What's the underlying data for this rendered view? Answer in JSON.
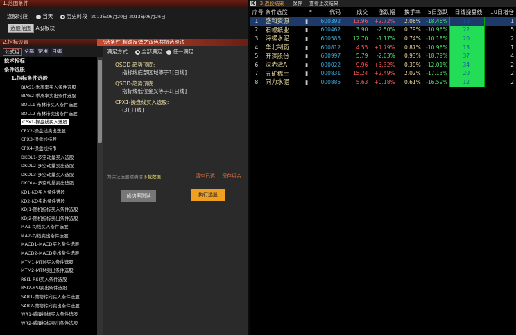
{
  "range": {
    "header": "1.范围条件",
    "period_label": "选股时段",
    "opt_today": "当天",
    "opt_history": "历史时段",
    "date_range": "2013年06月20日-2013年06月26日",
    "range_button": "选股范围",
    "range_value": "A股板块"
  },
  "indicator": {
    "header": "2.指标设置",
    "tabs": [
      "公式组",
      "全部",
      "常用",
      "自编"
    ],
    "tree_root": "技术指标",
    "tree_group": "条件选股",
    "tree_sub": "1.指标条件选股",
    "items": [
      "BIAS1-乖离率买入条件选股",
      "BIAS2-乖离率卖出条件选股",
      "BOLL1-布林带买入条件选股",
      "BOLL2-布林带卖出条件选股",
      "CPX1-操盘线买入选股",
      "CPX2-操盘线卖出选股",
      "CPX3-操盘线持股",
      "CPX4-操盘线持币",
      "DKDL1-多空动量买入选股",
      "DKDL2-多空动量卖出选股",
      "DKDL3-多空动量买入选股",
      "DKDL4-多空动量卖出选股",
      "KD1-KD买入条件选股",
      "KD2-KD卖出条件选股",
      "KDJ1-随机指标买入条件选股",
      "KDJ2-随机指标卖出条件选股",
      "MA1-均线买入条件选股",
      "MA2-均线卖出条件选股",
      "MACD1-MACD买入条件选股",
      "MACD2-MACD卖出条件选股",
      "MTM1-MTM买入条件选股",
      "MTM2-MTM卖出条件选股",
      "RSI1-RSI买入条件选股",
      "RSI2-RSI卖出条件选股",
      "SAR1-抛物转向买入条件选股",
      "SAR2-抛物转向卖出条件选股",
      "WR1-威廉指标买入条件选股",
      "WR2-威廉指标卖出条件选股"
    ],
    "selected_index": 4
  },
  "selected": {
    "header": "已选条件  超跌反弹之双色共振选股法",
    "mode_label": "满足方式:",
    "opt_all": "全部满足",
    "opt_any": "任一满足",
    "conditions": [
      {
        "title": "QSDD-趋势顶底:",
        "detail": "指标线底部区域等于1[日线]"
      },
      {
        "title": "QSDD-趋势顶底:",
        "detail": "指标线低位金叉等于1[日线]"
      },
      {
        "title": "CPX1-操盘线买入选股:",
        "detail": "(3)[日线]"
      }
    ],
    "hint": "为保证选股精确请",
    "download": "下载数据",
    "clear": "清空已选",
    "save": "保存组合",
    "test_button": "成功率测试",
    "run_button": "执行选股"
  },
  "results": {
    "title": "3.选股结果",
    "save": "保存",
    "view_last": "查看上次结果",
    "columns": [
      "序号",
      "条件选股",
      "*",
      "代码",
      "成交",
      "涨跌幅",
      "换手率",
      "5日涨跌",
      "日线操盘线",
      "10日增仓"
    ],
    "rows": [
      [
        "1",
        "盛和资源",
        "▮",
        "600392",
        "13.96",
        "+2.72%",
        "2.06%",
        "-18.46%",
        "10",
        "1"
      ],
      [
        "2",
        "石岘纸业",
        "▮",
        "600462",
        "3.90",
        "-2.50%",
        "0.79%",
        "-10.96%",
        "22",
        "5"
      ],
      [
        "3",
        "海螺水泥",
        "▮",
        "600585",
        "12.70",
        "-1.17%",
        "0.74%",
        "-10.18%",
        "20",
        "2"
      ],
      [
        "4",
        "华北制药",
        "▮",
        "600812",
        "4.55",
        "+1.79%",
        "0.87%",
        "-10.96%",
        "13",
        "1"
      ],
      [
        "5",
        "开滦股份",
        "▮",
        "600997",
        "5.79",
        "-2.03%",
        "0.93%",
        "-18.79%",
        "37",
        "4"
      ],
      [
        "6",
        "深赤湾A",
        "▮",
        "000022",
        "9.96",
        "+3.32%",
        "0.39%",
        "-12.01%",
        "34",
        "2"
      ],
      [
        "7",
        "五矿稀土",
        "▮",
        "000831",
        "15.24",
        "+2.49%",
        "2.02%",
        "-17.13%",
        "20",
        "2"
      ],
      [
        "8",
        "同力水泥",
        "▮",
        "000885",
        "5.63",
        "+0.18%",
        "0.61%",
        "-16.59%",
        "12",
        "2"
      ]
    ]
  },
  "colors": {
    "up": "#ff5a5a",
    "down": "#4ee06a",
    "code": "#3aa8d8",
    "highlight": "#22dd55",
    "accent": "#f0a020"
  }
}
